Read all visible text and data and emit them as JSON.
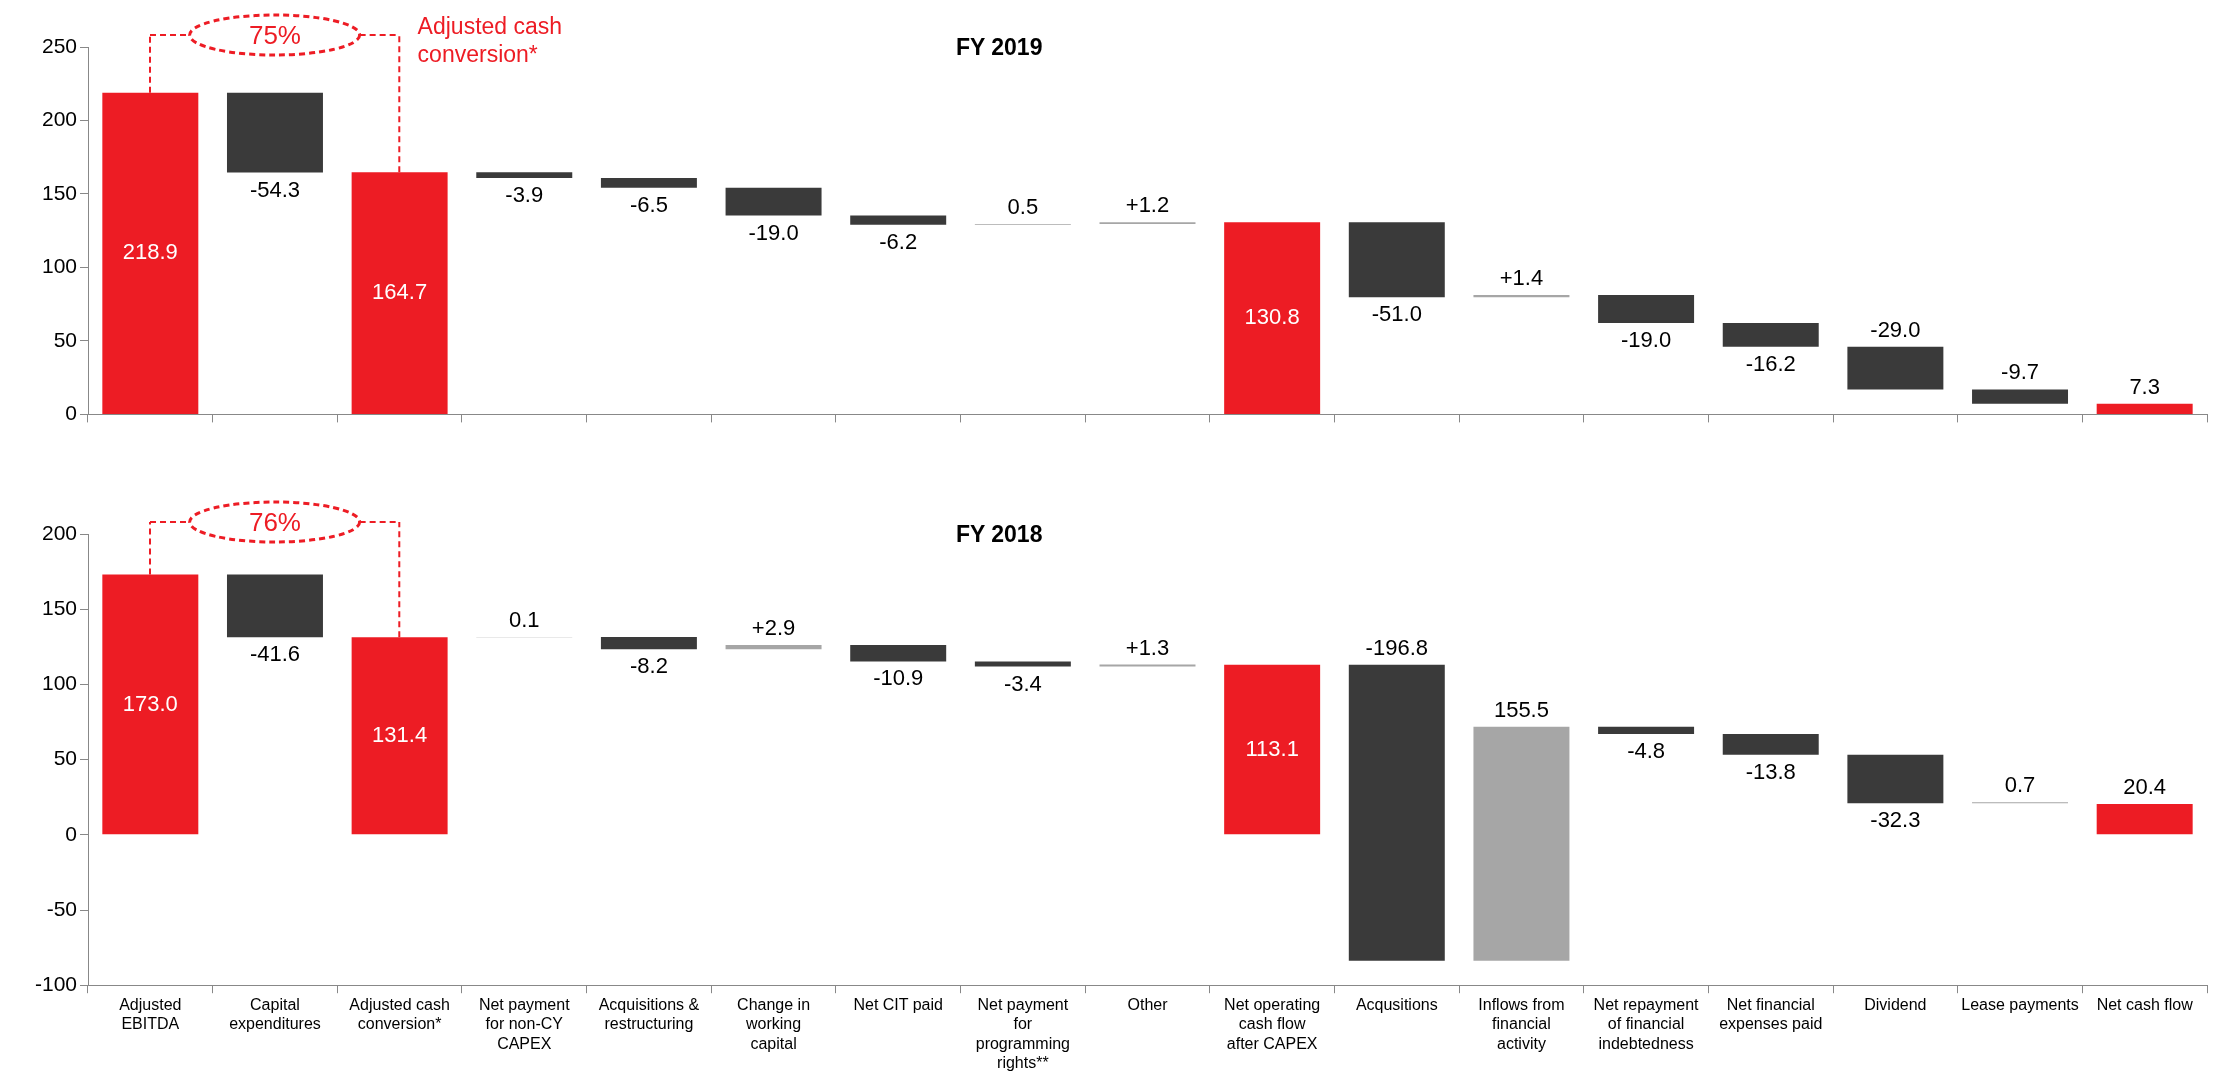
{
  "chart_data": [
    {
      "type": "bar",
      "title": "FY 2019",
      "categories": [
        "Adjusted EBITDA",
        "Capital expenditures",
        "Adjusted cash conversion*",
        "Net payment for non-CY CAPEX",
        "Acquisitions & restructuring",
        "Change in working capital",
        "Net CIT paid",
        "Net payment for programming rights**",
        "Other",
        "Net operating cash flow after CAPEX",
        "Acqusitions",
        "Inflows from financial activity",
        "Net repayment of financial indebtedness",
        "Net financial expenses paid",
        "Dividend",
        "Lease payments",
        "Net cash flow"
      ],
      "values": [
        218.9,
        -54.3,
        164.7,
        -3.9,
        -6.5,
        -19.0,
        -6.2,
        0.5,
        1.2,
        130.8,
        -51.0,
        1.4,
        -19.0,
        -16.2,
        -29.0,
        -9.7,
        7.3
      ],
      "base": [
        0,
        218.9,
        0,
        164.7,
        160.8,
        154.3,
        135.3,
        129.1,
        129.6,
        0,
        130.8,
        79.8,
        81.2,
        62.2,
        46.0,
        17.0,
        0
      ],
      "value_labels": [
        "218.9",
        "-54.3",
        "164.7",
        "-3.9",
        "-6.5",
        "-19.0",
        "-6.2",
        "0.5",
        "+1.2",
        "130.8",
        "-51.0",
        "+1.4",
        "-19.0",
        "-16.2",
        "-29.0",
        "-9.7",
        "7.3"
      ],
      "colors": [
        "#ed1c24",
        "#3a3a3a",
        "#ed1c24",
        "#3a3a3a",
        "#3a3a3a",
        "#3a3a3a",
        "#3a3a3a",
        "#a6a6a6",
        "#a6a6a6",
        "#ed1c24",
        "#3a3a3a",
        "#a6a6a6",
        "#3a3a3a",
        "#3a3a3a",
        "#3a3a3a",
        "#3a3a3a",
        "#ed1c24"
      ],
      "ylim": [
        0,
        250
      ],
      "yticks": [
        0,
        50,
        100,
        150,
        200,
        250
      ],
      "tick_labels": "y",
      "annotations": [
        "75%",
        {
          "text": "Adjusted cash conversion*",
          "x": "Adjusted cash conversion*",
          "y": 164.7
        }
      ]
    },
    {
      "type": "bar",
      "title": "FY 2018",
      "categories": [
        "Adjusted EBITDA",
        "Capital expenditures",
        "Adjusted cash conversion*",
        "Net payment for non-CY CAPEX",
        "Acquisitions & restructuring",
        "Change in working capital",
        "Net CIT paid",
        "Net payment for programming rights**",
        "Other",
        "Net operating cash flow after CAPEX",
        "Acqusitions",
        "Inflows from financial activity",
        "Net repayment of financial indebtedness",
        "Net financial expenses paid",
        "Dividend",
        "Lease payments",
        "Net cash flow"
      ],
      "values": [
        173.0,
        -41.6,
        131.4,
        0.1,
        -8.2,
        2.9,
        -10.9,
        -3.4,
        1.3,
        113.1,
        -196.8,
        155.5,
        -4.8,
        -13.8,
        -32.3,
        0.7,
        20.4
      ],
      "base": [
        0,
        173.0,
        0,
        131.4,
        131.5,
        123.3,
        126.2,
        115.3,
        111.9,
        0,
        113.1,
        -83.7,
        71.8,
        67.0,
        53.2,
        20.9,
        0
      ],
      "value_labels": [
        "173.0",
        "-41.6",
        "131.4",
        "0.1",
        "-8.2",
        "+2.9",
        "-10.9",
        "-3.4",
        "+1.3",
        "113.1",
        "-196.8",
        "155.5",
        "-4.8",
        "-13.8",
        "-32.3",
        "0.7",
        "20.4"
      ],
      "colors": [
        "#ed1c24",
        "#3a3a3a",
        "#ed1c24",
        "#a6a6a6",
        "#3a3a3a",
        "#a6a6a6",
        "#3a3a3a",
        "#3a3a3a",
        "#a6a6a6",
        "#ed1c24",
        "#3a3a3a",
        "#a6a6a6",
        "#3a3a3a",
        "#3a3a3a",
        "#3a3a3a",
        "#a6a6a6",
        "#ed1c24"
      ],
      "ylim": [
        -100,
        200
      ],
      "yticks": [
        -100,
        -50,
        0,
        50,
        100,
        150,
        200
      ],
      "annotations": [
        "76%"
      ]
    }
  ]
}
